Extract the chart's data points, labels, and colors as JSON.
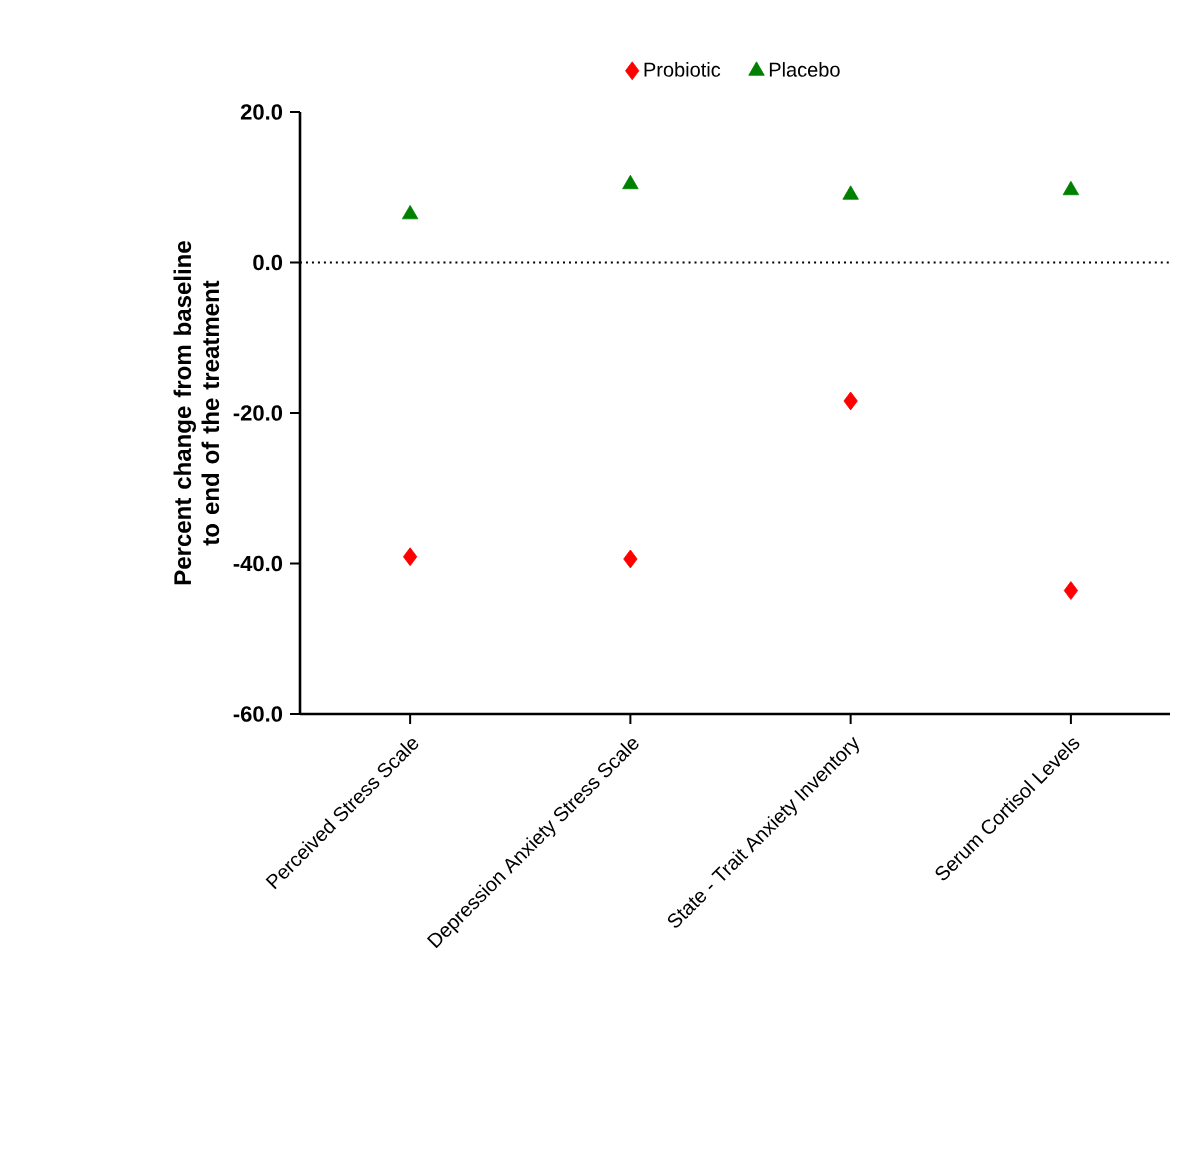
{
  "chart_data": {
    "type": "scatter",
    "ylabel": "Percent change from baseline to end of the treatment",
    "categories": [
      "Perceived Stress Scale",
      "Depression Anxiety Stress Scale",
      "State - Trait Anxiety Inventory",
      "Serum Cortisol Levels"
    ],
    "series": [
      {
        "name": "Probiotic",
        "color": "#ff0000",
        "marker": "diamond",
        "values": [
          -39.1,
          -39.4,
          -18.4,
          -43.6
        ]
      },
      {
        "name": "Placebo",
        "color": "#008000",
        "marker": "triangle",
        "values": [
          6.4,
          10.4,
          9.0,
          9.6
        ]
      }
    ],
    "ylim": [
      -60,
      20
    ],
    "yticks": [
      {
        "value": -60,
        "label": "-60.0"
      },
      {
        "value": -40,
        "label": "-40.0"
      },
      {
        "value": -20,
        "label": "-20.0"
      },
      {
        "value": 0,
        "label": "0.0"
      },
      {
        "value": 20,
        "label": "20.0"
      }
    ],
    "ref_lines": [
      {
        "axis": "y",
        "value": 0,
        "line_style": "dotted",
        "color": "#000000"
      }
    ],
    "legend": "top",
    "grid": false
  }
}
